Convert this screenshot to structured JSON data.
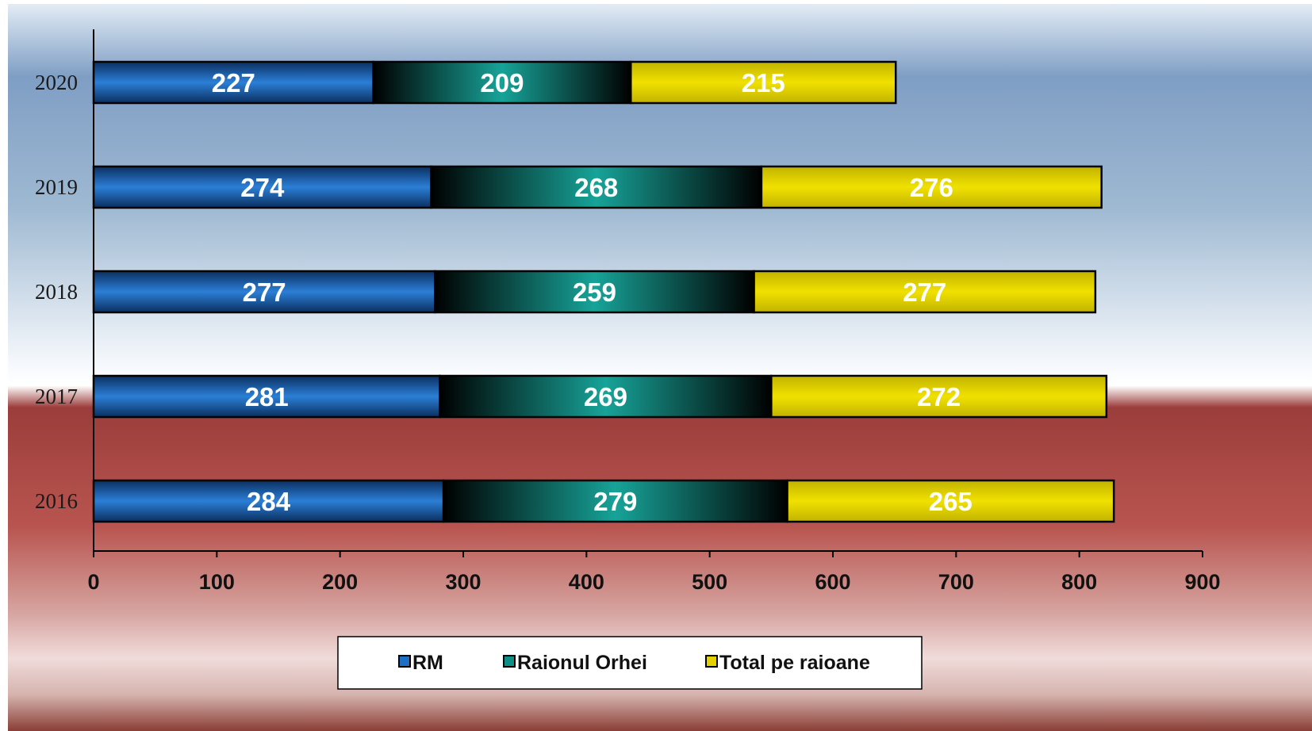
{
  "chart_data": {
    "type": "bar",
    "orientation": "horizontal",
    "stacked": true,
    "categories": [
      "2020",
      "2019",
      "2018",
      "2017",
      "2016"
    ],
    "series": [
      {
        "name": "RM",
        "values": [
          227,
          274,
          277,
          281,
          284
        ],
        "color": "#1e6fc4"
      },
      {
        "name": "Raionul Orhei",
        "values": [
          209,
          268,
          259,
          269,
          279
        ],
        "color": "#0e8f86"
      },
      {
        "name": "Total pe raioane",
        "values": [
          215,
          276,
          277,
          272,
          265
        ],
        "color": "#e4d200"
      }
    ],
    "xlim": [
      0,
      900
    ],
    "xticks": [
      0,
      100,
      200,
      300,
      400,
      500,
      600,
      700,
      800,
      900
    ],
    "grid": false,
    "legend_position": "bottom",
    "title": "",
    "xlabel": "",
    "ylabel": ""
  }
}
